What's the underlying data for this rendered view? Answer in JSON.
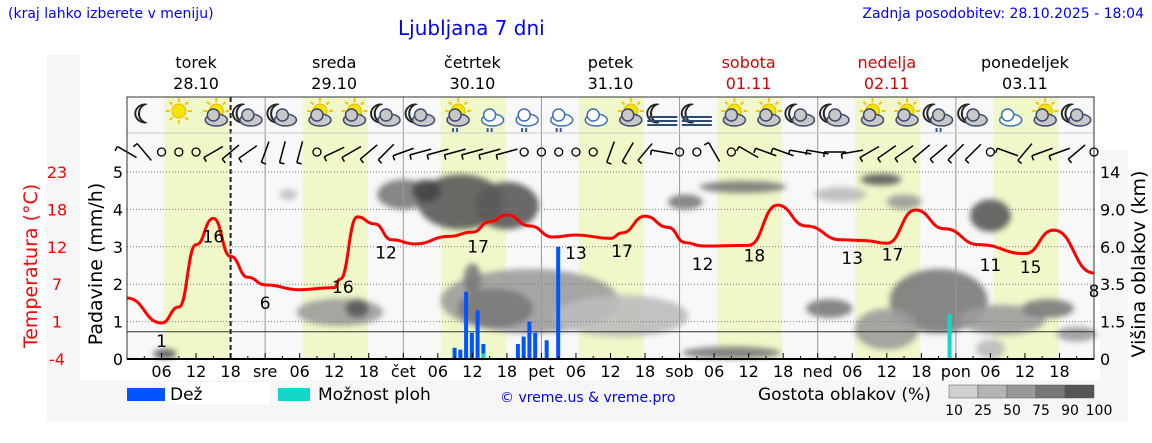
{
  "header": {
    "city_hint": "(kraj lahko izberete v meniju)",
    "title": "Ljubljana 7 dni",
    "updated": "Zadnja posodobitev: 28.10.2025 - 18:04"
  },
  "days": [
    {
      "name": "torek",
      "date": "28.10",
      "weekend": false
    },
    {
      "name": "sreda",
      "date": "29.10",
      "weekend": false
    },
    {
      "name": "četrtek",
      "date": "30.10",
      "weekend": false
    },
    {
      "name": "petek",
      "date": "31.10",
      "weekend": false
    },
    {
      "name": "sobota",
      "date": "01.11",
      "weekend": true
    },
    {
      "name": "nedelja",
      "date": "02.11",
      "weekend": true
    },
    {
      "name": "ponedeljek",
      "date": "03.11",
      "weekend": false
    }
  ],
  "colors": {
    "temperature": "#ff0000",
    "rain": "#0055ff",
    "storm": "#11d8c8",
    "daylight": "#f0f7c8",
    "weekend": "#dd0000",
    "link": "#0000ff"
  },
  "legend": {
    "rain": "Dež",
    "storm": "Možnost ploh",
    "copyright": "© vreme.us & vreme.pro",
    "cloud_density": "Gostota oblakov (%)",
    "density_ticks": [
      "10",
      "25",
      "50",
      "75",
      "90",
      "100"
    ]
  },
  "weather_icons": [
    "moon",
    "sun",
    "sun-cloud",
    "moon-cloud",
    "moon-cloud",
    "sun-cloud",
    "sun-cloud",
    "moon-cloud",
    "moon-cloud",
    "sun-cloud-rain",
    "cloud-rain",
    "cloud-rain",
    "cloud-rain",
    "cloud",
    "sun-cloud",
    "moon-fog",
    "moon-fog",
    "sun-cloud",
    "sun-cloud",
    "moon-cloud",
    "moon-cloud",
    "sun-cloud",
    "sun-cloud",
    "moon-cloud-rain",
    "moon-cloud",
    "cloud",
    "sun-cloud",
    "moon-cloud"
  ],
  "wind_barbs": [
    300,
    320,
    "calm",
    "calm",
    "calm",
    240,
    230,
    235,
    200,
    195,
    195,
    "calm",
    245,
    240,
    230,
    225,
    250,
    255,
    255,
    255,
    255,
    255,
    255,
    "calm",
    "calm",
    "calm",
    "calm",
    "calm",
    200,
    210,
    220,
    280,
    "calm",
    "calm",
    330,
    "calm",
    300,
    290,
    290,
    280,
    280,
    270,
    260,
    240,
    235,
    235,
    230,
    230,
    225,
    225,
    "calm",
    290,
    220,
    250,
    250,
    230,
    "calm"
  ],
  "chart_data": {
    "type": "line+bar+heatmap",
    "x_unit": "hour from 28.10 00:00",
    "xlim": [
      0,
      168
    ],
    "x_tick_labels": [
      "06",
      "12",
      "18",
      "sre",
      "06",
      "12",
      "18",
      "čet",
      "06",
      "12",
      "18",
      "pet",
      "06",
      "12",
      "18",
      "sob",
      "06",
      "12",
      "18",
      "ned",
      "06",
      "12",
      "18",
      "pon",
      "06",
      "12",
      "18"
    ],
    "left_axis": {
      "label": "Temperatura (°C)",
      "ticks": [
        "23",
        "18",
        "12",
        "7",
        "1",
        "-4"
      ],
      "range": [
        -4,
        23
      ]
    },
    "precip_axis": {
      "label": "Padavine (mm/h)",
      "ticks": [
        "0",
        "1",
        "2",
        "3",
        "4",
        "5"
      ],
      "range": [
        0,
        5.5
      ]
    },
    "right_axis": {
      "label": "Višina oblakov (km)",
      "ticks": [
        "0",
        "1.5",
        "3.5",
        "6.0",
        "9.0",
        "14"
      ]
    },
    "grid": true,
    "day_separator_dashed_hour": 18,
    "reference_line_mmh": 0.73,
    "temperature": {
      "hours": [
        0,
        6,
        9,
        12,
        15,
        18,
        21,
        24,
        30,
        36,
        37,
        40,
        43,
        46,
        50,
        56,
        60,
        63,
        66,
        70,
        74,
        78,
        84,
        86,
        90,
        94,
        97,
        100,
        108,
        113,
        118,
        124,
        128,
        132,
        137,
        142,
        148,
        156,
        161,
        168
      ],
      "values": [
        4.8,
        1.2,
        3.5,
        12.5,
        16.3,
        10.8,
        7.8,
        6.7,
        6.0,
        6.3,
        7.5,
        16.5,
        15.5,
        13.2,
        12.6,
        13.7,
        14.3,
        15.8,
        16.8,
        15.2,
        13.6,
        13.9,
        13.4,
        14.2,
        16.6,
        15.0,
        12.8,
        12.3,
        12.4,
        18.2,
        15.2,
        13.2,
        13.1,
        12.7,
        17.5,
        14.8,
        12.5,
        11.2,
        14.6,
        8.4
      ],
      "labels": [
        {
          "h": 6,
          "v": "1"
        },
        {
          "h": 15,
          "v": "16"
        },
        {
          "h": 24,
          "v": "6"
        },
        {
          "h": 37.5,
          "v": "16"
        },
        {
          "h": 45,
          "v": "12"
        },
        {
          "h": 61,
          "v": "17"
        },
        {
          "h": 78,
          "v": "13"
        },
        {
          "h": 86,
          "v": "17"
        },
        {
          "h": 100,
          "v": "12"
        },
        {
          "h": 109,
          "v": "18"
        },
        {
          "h": 126,
          "v": "13"
        },
        {
          "h": 133,
          "v": "17"
        },
        {
          "h": 150,
          "v": "11"
        },
        {
          "h": 157,
          "v": "15"
        },
        {
          "h": 168,
          "v": "8"
        }
      ]
    },
    "rain": {
      "hours": [
        57,
        58,
        59,
        60,
        61,
        62,
        68,
        69,
        70,
        71,
        73,
        75
      ],
      "mmh": [
        0.3,
        0.25,
        1.8,
        0.7,
        1.3,
        0.4,
        0.4,
        0.6,
        1.0,
        0.7,
        0.5,
        3.0
      ]
    },
    "storm_possibility": {
      "hours": [
        62,
        143
      ],
      "mmh": [
        0.15,
        1.2
      ]
    },
    "clouds": [
      {
        "h": 6.6,
        "km": 0.2,
        "dh": 3,
        "dkm": 0.4,
        "d": 90
      },
      {
        "h": 28,
        "km": 11,
        "dh": 2,
        "dkm": 1,
        "d": 25
      },
      {
        "h": 37,
        "km": 2,
        "dh": 14,
        "dkm": 1.4,
        "d": 50
      },
      {
        "h": 40,
        "km": 2.2,
        "dh": 3,
        "dkm": 1,
        "d": 90
      },
      {
        "h": 48,
        "km": 11,
        "dh": 8,
        "dkm": 4,
        "d": 75
      },
      {
        "h": 58,
        "km": 10,
        "dh": 14,
        "dkm": 6,
        "d": 90
      },
      {
        "h": 52,
        "km": 11.5,
        "dh": 4,
        "dkm": 3,
        "d": 100
      },
      {
        "h": 66,
        "km": 9.5,
        "dh": 10,
        "dkm": 5,
        "d": 90
      },
      {
        "h": 70,
        "km": 2.6,
        "dh": 30,
        "dkm": 3.4,
        "d": 50
      },
      {
        "h": 64,
        "km": 2.2,
        "dh": 12,
        "dkm": 2,
        "d": 75
      },
      {
        "h": 86,
        "km": 1.8,
        "dh": 22,
        "dkm": 2,
        "d": 25
      },
      {
        "h": 60,
        "km": 3.8,
        "dh": 2,
        "dkm": 2,
        "d": 75
      },
      {
        "h": 97,
        "km": 10,
        "dh": 5,
        "dkm": 2,
        "d": 75
      },
      {
        "h": 107,
        "km": 12,
        "dh": 14,
        "dkm": 1.6,
        "d": 75
      },
      {
        "h": 105,
        "km": 0.25,
        "dh": 16,
        "dkm": 0.5,
        "d": 75
      },
      {
        "h": 124,
        "km": 11,
        "dh": 8,
        "dkm": 2,
        "d": 25
      },
      {
        "h": 131,
        "km": 13,
        "dh": 6,
        "dkm": 1.5,
        "d": 90
      },
      {
        "h": 135,
        "km": 10,
        "dh": 5,
        "dkm": 2,
        "d": 50
      },
      {
        "h": 122,
        "km": 2.2,
        "dh": 7,
        "dkm": 1,
        "d": 75
      },
      {
        "h": 141,
        "km": 2.6,
        "dh": 16,
        "dkm": 3.4,
        "d": 75
      },
      {
        "h": 132,
        "km": 1.2,
        "dh": 10,
        "dkm": 1.8,
        "d": 50
      },
      {
        "h": 150,
        "km": 8.5,
        "dh": 6,
        "dkm": 3,
        "d": 90
      },
      {
        "h": 152,
        "km": 1.6,
        "dh": 14,
        "dkm": 1.4,
        "d": 50
      },
      {
        "h": 160,
        "km": 2.2,
        "dh": 8,
        "dkm": 1,
        "d": 75
      },
      {
        "h": 150,
        "km": 0.4,
        "dh": 4,
        "dkm": 0.8,
        "d": 25
      },
      {
        "h": 165,
        "km": 1.0,
        "dh": 6,
        "dkm": 0.6,
        "d": 50
      }
    ]
  }
}
